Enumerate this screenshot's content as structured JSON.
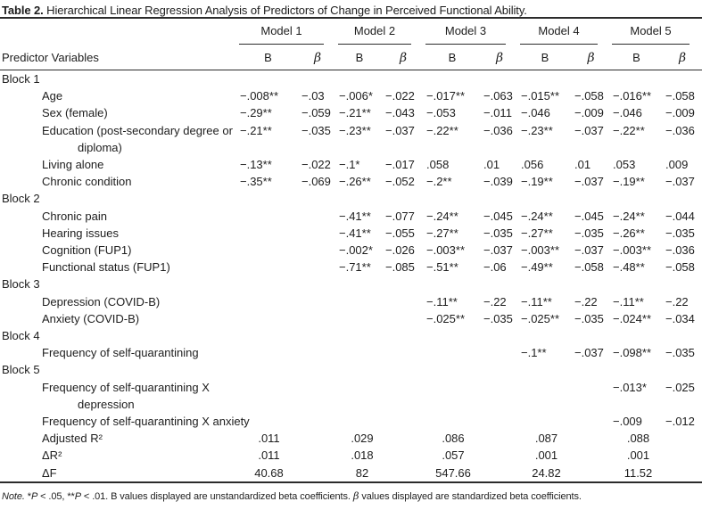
{
  "caption": {
    "prefix": "Table 2.",
    "rest": " Hierarchical Linear Regression Analysis of Predictors of Change in Perceived Functional Ability."
  },
  "header": {
    "predictor_label": "Predictor Variables",
    "models": [
      "Model 1",
      "Model 2",
      "Model 3",
      "Model 4",
      "Model 5"
    ],
    "col_b": "B",
    "col_beta": "β"
  },
  "chart_data": {
    "type": "table",
    "title": "Table 2. Hierarchical Linear Regression Analysis of Predictors of Change in Perceived Functional Ability.",
    "columns": [
      "Predictor Variables",
      "Model 1 B",
      "Model 1 β",
      "Model 2 B",
      "Model 2 β",
      "Model 3 B",
      "Model 3 β",
      "Model 4 B",
      "Model 4 β",
      "Model 5 B",
      "Model 5 β"
    ]
  },
  "table": {
    "rows": [
      {
        "type": "block",
        "lines": [
          "Block 1"
        ],
        "cells": []
      },
      {
        "type": "predictor",
        "lines": [
          "Age"
        ],
        "cells": [
          "−.008**",
          "−.03",
          "−.006*",
          "−.022",
          "−.017**",
          "−.063",
          "−.015**",
          "−.058",
          "−.016**",
          "−.058"
        ]
      },
      {
        "type": "predictor",
        "lines": [
          "Sex (female)"
        ],
        "cells": [
          "−.29**",
          "−.059",
          "−.21**",
          "−.043",
          "−.053",
          "−.011",
          "−.046",
          "−.009",
          "−.046",
          "−.009"
        ]
      },
      {
        "type": "predictor2",
        "lines": [
          "Education (post-secondary degree or",
          "diploma)"
        ],
        "cells": [
          "−.21**",
          "−.035",
          "−.23**",
          "−.037",
          "−.22**",
          "−.036",
          "−.23**",
          "−.037",
          "−.22**",
          "−.036"
        ]
      },
      {
        "type": "predictor",
        "lines": [
          "Living alone"
        ],
        "cells": [
          "−.13**",
          "−.022",
          "−.1*",
          "−.017",
          ".058",
          ".01",
          ".056",
          ".01",
          ".053",
          ".009"
        ]
      },
      {
        "type": "predictor",
        "lines": [
          "Chronic condition"
        ],
        "cells": [
          "−.35**",
          "−.069",
          "−.26**",
          "−.052",
          "−.2**",
          "−.039",
          "−.19**",
          "−.037",
          "−.19**",
          "−.037"
        ]
      },
      {
        "type": "block",
        "lines": [
          "Block 2"
        ],
        "cells": []
      },
      {
        "type": "predictor",
        "lines": [
          "Chronic pain"
        ],
        "cells": [
          "",
          "",
          "−.41**",
          "−.077",
          "−.24**",
          "−.045",
          "−.24**",
          "−.045",
          "−.24**",
          "−.044"
        ]
      },
      {
        "type": "predictor",
        "lines": [
          "Hearing issues"
        ],
        "cells": [
          "",
          "",
          "−.41**",
          "−.055",
          "−.27**",
          "−.035",
          "−.27**",
          "−.035",
          "−.26**",
          "−.035"
        ]
      },
      {
        "type": "predictor",
        "lines": [
          "Cognition (FUP1)"
        ],
        "cells": [
          "",
          "",
          "−.002*",
          "−.026",
          "−.003**",
          "−.037",
          "−.003**",
          "−.037",
          "−.003**",
          "−.036"
        ]
      },
      {
        "type": "predictor",
        "lines": [
          "Functional status (FUP1)"
        ],
        "cells": [
          "",
          "",
          "−.71**",
          "−.085",
          "−.51**",
          "−.06",
          "−.49**",
          "−.058",
          "−.48**",
          "−.058"
        ]
      },
      {
        "type": "block",
        "lines": [
          "Block 3"
        ],
        "cells": []
      },
      {
        "type": "predictor",
        "lines": [
          "Depression (COVID-B)"
        ],
        "cells": [
          "",
          "",
          "",
          "",
          "−.11**",
          "−.22",
          "−.11**",
          "−.22",
          "−.11**",
          "−.22"
        ]
      },
      {
        "type": "predictor",
        "lines": [
          "Anxiety (COVID-B)"
        ],
        "cells": [
          "",
          "",
          "",
          "",
          "−.025**",
          "−.035",
          "−.025**",
          "−.035",
          "−.024**",
          "−.034"
        ]
      },
      {
        "type": "block",
        "lines": [
          "Block 4"
        ],
        "cells": []
      },
      {
        "type": "predictor",
        "lines": [
          "Frequency of self-quarantining"
        ],
        "cells": [
          "",
          "",
          "",
          "",
          "",
          "",
          "−.1**",
          "−.037",
          "−.098**",
          "−.035"
        ]
      },
      {
        "type": "block",
        "lines": [
          "Block 5"
        ],
        "cells": []
      },
      {
        "type": "predictor2",
        "lines": [
          "Frequency of self-quarantining X",
          "depression"
        ],
        "cells": [
          "",
          "",
          "",
          "",
          "",
          "",
          "",
          "",
          "−.013*",
          "−.025"
        ]
      },
      {
        "type": "predictor",
        "lines": [
          "Frequency of self-quarantining X anxiety"
        ],
        "cells": [
          "",
          "",
          "",
          "",
          "",
          "",
          "",
          "",
          "−.009",
          "−.012"
        ]
      },
      {
        "type": "summary",
        "lines": [
          "Adjusted R²"
        ],
        "cells": [
          ".011",
          ".029",
          ".086",
          ".087",
          ".088"
        ]
      },
      {
        "type": "summary",
        "lines": [
          "ΔR²"
        ],
        "cells": [
          ".011",
          ".018",
          ".057",
          ".001",
          ".001"
        ]
      },
      {
        "type": "summary",
        "lines": [
          "ΔF"
        ],
        "cells": [
          "40.68",
          "82",
          "547.66",
          "24.82",
          "11.52"
        ]
      }
    ]
  },
  "note": {
    "segments": [
      {
        "t": "Note. ",
        "s": "i"
      },
      {
        "t": "*"
      },
      {
        "t": "P",
        "s": "i"
      },
      {
        "t": " < .05, **"
      },
      {
        "t": "P",
        "s": "i"
      },
      {
        "t": " < .01. B values displayed are unstandardized beta coefficients. "
      },
      {
        "t": "β",
        "s": "g"
      },
      {
        "t": " values displayed are standardized beta coefficients."
      }
    ]
  },
  "colors": {
    "text": "#1d1d1d",
    "rule": "#2b2b2b",
    "background": "#ffffff"
  }
}
